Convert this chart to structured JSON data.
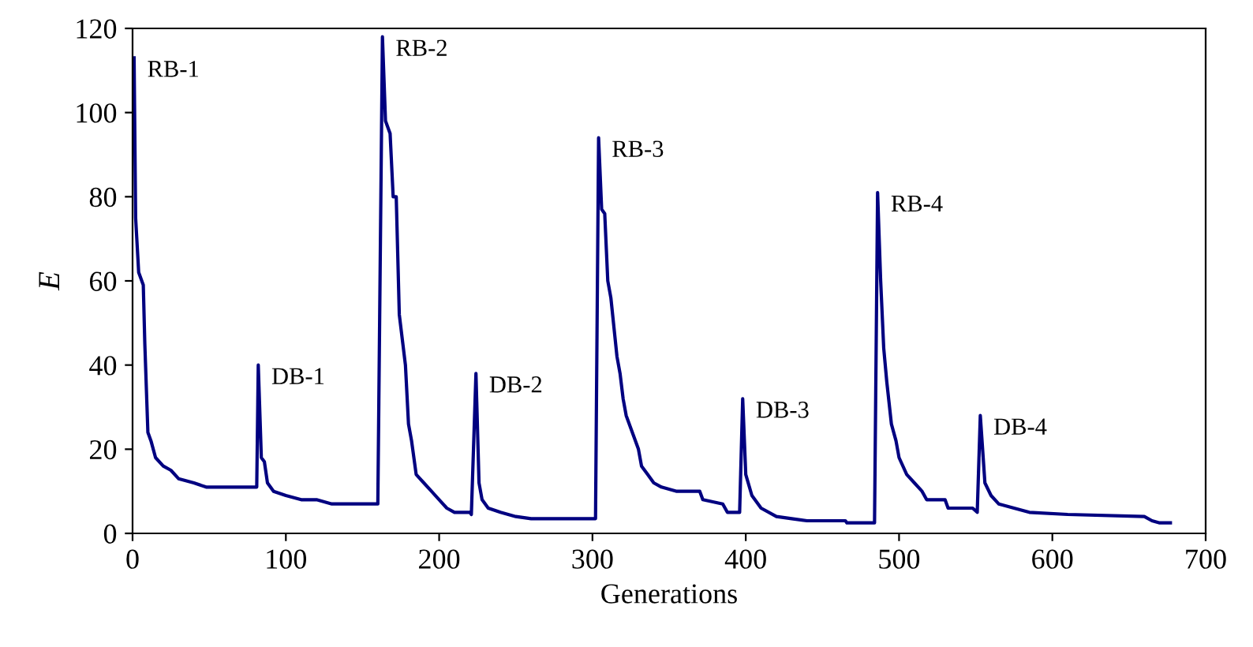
{
  "chart_data": {
    "type": "line",
    "xlabel": "Generations",
    "ylabel": "E",
    "xlim": [
      0,
      700
    ],
    "ylim": [
      0,
      120
    ],
    "xticks": [
      0,
      100,
      200,
      300,
      400,
      500,
      600,
      700
    ],
    "yticks": [
      0,
      20,
      40,
      60,
      80,
      100,
      120
    ],
    "grid": false,
    "legend": false,
    "marker": "none",
    "line_style": "solid",
    "annotations": [
      {
        "text": "RB-1",
        "x": 1,
        "y": 113
      },
      {
        "text": "DB-1",
        "x": 82,
        "y": 40
      },
      {
        "text": "RB-2",
        "x": 163,
        "y": 118
      },
      {
        "text": "DB-2",
        "x": 224,
        "y": 38
      },
      {
        "text": "RB-3",
        "x": 304,
        "y": 94
      },
      {
        "text": "DB-3",
        "x": 398,
        "y": 32
      },
      {
        "text": "RB-4",
        "x": 486,
        "y": 81
      },
      {
        "text": "DB-4",
        "x": 553,
        "y": 28
      }
    ],
    "series": [
      {
        "color": "#000080",
        "x": [
          1,
          2,
          4,
          7,
          8,
          10,
          12,
          15,
          20,
          25,
          30,
          40,
          48,
          81,
          82,
          84,
          86,
          88,
          92,
          100,
          110,
          120,
          130,
          160,
          163,
          165,
          168,
          170,
          172,
          174,
          178,
          180,
          182,
          185,
          190,
          195,
          200,
          205,
          210,
          220,
          221,
          224,
          226,
          228,
          232,
          240,
          250,
          260,
          302,
          304,
          306,
          308,
          310,
          312,
          316,
          318,
          320,
          322,
          326,
          330,
          332,
          336,
          340,
          345,
          355,
          370,
          372,
          385,
          388,
          396,
          398,
          400,
          404,
          410,
          420,
          430,
          440,
          465,
          466,
          484,
          486,
          488,
          490,
          492,
          495,
          498,
          500,
          505,
          510,
          515,
          518,
          530,
          532,
          548,
          551,
          553,
          556,
          560,
          565,
          575,
          585,
          610,
          660,
          665,
          670,
          677
        ],
        "values": [
          113,
          75,
          62,
          59,
          45,
          24,
          22,
          18,
          16,
          15,
          13,
          12,
          11,
          11,
          40,
          18,
          17,
          12,
          10,
          9,
          8,
          8,
          7,
          7,
          118,
          98,
          95,
          80,
          80,
          52,
          40,
          26,
          22,
          14,
          12,
          10,
          8,
          6,
          5,
          5,
          4.5,
          38,
          12,
          8,
          6,
          5,
          4,
          3.5,
          3.5,
          94,
          77,
          76,
          60,
          56,
          42,
          38,
          32,
          28,
          24,
          20,
          16,
          14,
          12,
          11,
          10,
          10,
          8,
          7,
          5,
          5,
          32,
          14,
          9,
          6,
          4,
          3.5,
          3,
          3,
          2.5,
          2.5,
          81,
          60,
          44,
          36,
          26,
          22,
          18,
          14,
          12,
          10,
          8,
          8,
          6,
          6,
          5,
          28,
          12,
          9,
          7,
          6,
          5,
          4.5,
          4,
          3,
          2.5,
          2.5
        ]
      }
    ]
  }
}
